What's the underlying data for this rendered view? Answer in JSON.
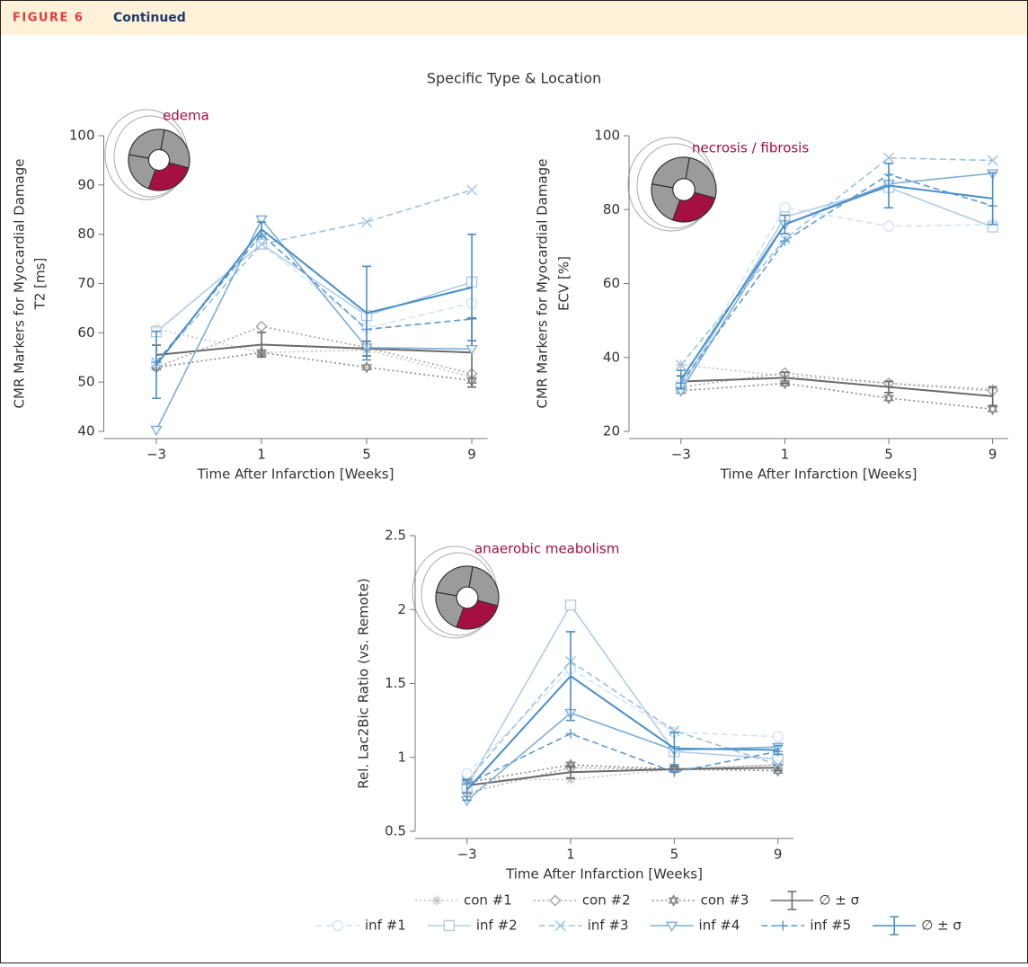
{
  "header": {
    "figure": "FIGURE 6",
    "label": "Continued"
  },
  "suptitle": "Specific Type & Location",
  "chart_data": [
    {
      "type": "line",
      "annotation": "edema",
      "ylabel": [
        "CMR Markers for Myocardial Damage",
        "T2 [ms]"
      ],
      "xlabel": "Time After Infarction [Weeks]",
      "x": [
        -3,
        1,
        5,
        9
      ],
      "xlim": [
        -5,
        9.6
      ],
      "xticks": [
        {
          "value": -3,
          "label": "−3"
        },
        1,
        5,
        9
      ],
      "ylim": [
        40,
        100
      ],
      "yticks": [
        40,
        50,
        60,
        70,
        80,
        90,
        100
      ],
      "series": [
        {
          "color": "#c4c4c4",
          "marker": "asterisk",
          "dash": "dotted",
          "values": [
            60.8,
            56,
            56.5,
            51
          ]
        },
        {
          "color": "#a6a6a6",
          "marker": "diamond",
          "dash": "dotted",
          "values": [
            53,
            61.3,
            57,
            51.7
          ]
        },
        {
          "color": "#8a8a8a",
          "marker": "star",
          "dash": "dotted",
          "values": [
            53,
            56,
            53,
            50.3
          ]
        },
        {
          "color": "#6a6a6a",
          "marker": "none",
          "dash": "solid",
          "values": [
            55.5,
            57.6,
            56.8,
            56
          ],
          "error": [
            2,
            2.5,
            1.5,
            7
          ]
        },
        {
          "color": "#d3e4f2",
          "marker": "circle",
          "dash": "dashed",
          "values": [
            54,
            78,
            61,
            66
          ]
        },
        {
          "color": "#b0cde7",
          "marker": "square",
          "dash": "solid",
          "values": [
            60.2,
            78,
            63.5,
            70.3
          ]
        },
        {
          "color": "#9cc1e2",
          "marker": "x",
          "dash": "dashed",
          "values": [
            54,
            78,
            82.5,
            89
          ]
        },
        {
          "color": "#7eaed9",
          "marker": "tri-down",
          "dash": "solid",
          "values": [
            40.3,
            83,
            57,
            56.7
          ]
        },
        {
          "color": "#5b9bd0",
          "marker": "plus",
          "dash": "dashed",
          "values": [
            54,
            80,
            60.7,
            62.8
          ]
        },
        {
          "color": "#4a8fc8",
          "marker": "none",
          "dash": "solid",
          "values": [
            53.5,
            81,
            64,
            69.2
          ],
          "error": [
            6.8,
            1.5,
            9.5,
            10.8
          ]
        }
      ]
    },
    {
      "type": "line",
      "annotation": "necrosis / fibrosis",
      "ylabel": [
        "CMR Markers for Myocardial Damage",
        "ECV [%]"
      ],
      "xlabel": "Time After Infarction [Weeks]",
      "x": [
        -3,
        1,
        5,
        9
      ],
      "xlim": [
        -5,
        9.6
      ],
      "xticks": [
        {
          "value": -3,
          "label": "−3"
        },
        1,
        5,
        9
      ],
      "ylim": [
        20,
        100
      ],
      "yticks": [
        20,
        40,
        60,
        80,
        100
      ],
      "series": [
        {
          "color": "#c4c4c4",
          "marker": "asterisk",
          "dash": "dotted",
          "values": [
            38,
            35,
            33,
            31.5
          ]
        },
        {
          "color": "#a6a6a6",
          "marker": "diamond",
          "dash": "dotted",
          "values": [
            32,
            35.8,
            33,
            31
          ]
        },
        {
          "color": "#8a8a8a",
          "marker": "star",
          "dash": "dotted",
          "values": [
            31,
            33,
            29,
            26
          ]
        },
        {
          "color": "#6a6a6a",
          "marker": "none",
          "dash": "solid",
          "values": [
            33.5,
            34.5,
            32,
            29.5
          ],
          "error": [
            1.5,
            1.5,
            1.5,
            2.5
          ]
        },
        {
          "color": "#d3e4f2",
          "marker": "circle",
          "dash": "dashed",
          "values": [
            33,
            80.5,
            75.5,
            76
          ]
        },
        {
          "color": "#b0cde7",
          "marker": "square",
          "dash": "solid",
          "values": [
            32,
            78,
            86,
            75.3
          ]
        },
        {
          "color": "#9cc1e2",
          "marker": "x",
          "dash": "dashed",
          "values": [
            38,
            72,
            94,
            93.3
          ]
        },
        {
          "color": "#7eaed9",
          "marker": "tri-down",
          "dash": "solid",
          "values": [
            31,
            76,
            87,
            89.8
          ]
        },
        {
          "color": "#5b9bd0",
          "marker": "plus",
          "dash": "dashed",
          "values": [
            33,
            71.5,
            89.5,
            81
          ]
        },
        {
          "color": "#4a8fc8",
          "marker": "none",
          "dash": "solid",
          "values": [
            34,
            76,
            86.5,
            83
          ],
          "error": [
            2.5,
            2.5,
            6,
            7
          ]
        }
      ]
    },
    {
      "type": "line",
      "annotation": "anaerobic meabolism",
      "ylabel": [
        "Rel. Lac2Bic Ratio (vs. Remote)"
      ],
      "xlabel": "Time After Infarction [Weeks]",
      "x": [
        -3,
        1,
        5,
        9
      ],
      "xlim": [
        -5,
        9.6
      ],
      "xticks": [
        {
          "value": -3,
          "label": "−3"
        },
        1,
        5,
        9
      ],
      "ylim": [
        0.5,
        2.5
      ],
      "yticks": [
        0.5,
        1,
        1.5,
        2,
        2.5
      ],
      "series": [
        {
          "name": "con #1",
          "color": "#c4c4c4",
          "marker": "asterisk",
          "dash": "dotted",
          "values": [
            0.85,
            0.85,
            0.92,
            0.95
          ]
        },
        {
          "name": "con #2",
          "color": "#a6a6a6",
          "marker": "diamond",
          "dash": "dotted",
          "values": [
            0.76,
            0.93,
            0.92,
            0.95
          ]
        },
        {
          "name": "con #3",
          "color": "#8a8a8a",
          "marker": "star",
          "dash": "dotted",
          "values": [
            0.83,
            0.95,
            0.92,
            0.91
          ]
        },
        {
          "name": "∅ ± σ",
          "color": "#6a6a6a",
          "marker": "none",
          "dash": "solid",
          "values": [
            0.81,
            0.9,
            0.92,
            0.93
          ],
          "error": [
            0.05,
            0.04,
            0.02,
            0.02
          ]
        },
        {
          "name": "inf #1",
          "color": "#d3e4f2",
          "marker": "circle",
          "dash": "dashed",
          "values": [
            0.89,
            1.6,
            1.17,
            1.14
          ]
        },
        {
          "name": "inf #2",
          "color": "#b0cde7",
          "marker": "square",
          "dash": "solid",
          "values": [
            0.8,
            2.03,
            1.04,
            0.99
          ]
        },
        {
          "name": "inf #3",
          "color": "#9cc1e2",
          "marker": "x",
          "dash": "dashed",
          "values": [
            0.84,
            1.65,
            1.18,
            0.95
          ]
        },
        {
          "name": "inf #4",
          "color": "#7eaed9",
          "marker": "tri-down",
          "dash": "solid",
          "values": [
            0.71,
            1.3,
            1.05,
            1.07
          ]
        },
        {
          "name": "inf #5",
          "color": "#5b9bd0",
          "marker": "plus",
          "dash": "dashed",
          "values": [
            0.82,
            1.16,
            0.9,
            1.04
          ]
        },
        {
          "name": "∅ ± σ",
          "color": "#4a8fc8",
          "marker": "none",
          "dash": "solid",
          "values": [
            0.78,
            1.55,
            1.06,
            1.05
          ],
          "error": [
            0.07,
            0.3,
            0.11,
            0.03
          ]
        }
      ]
    }
  ]
}
